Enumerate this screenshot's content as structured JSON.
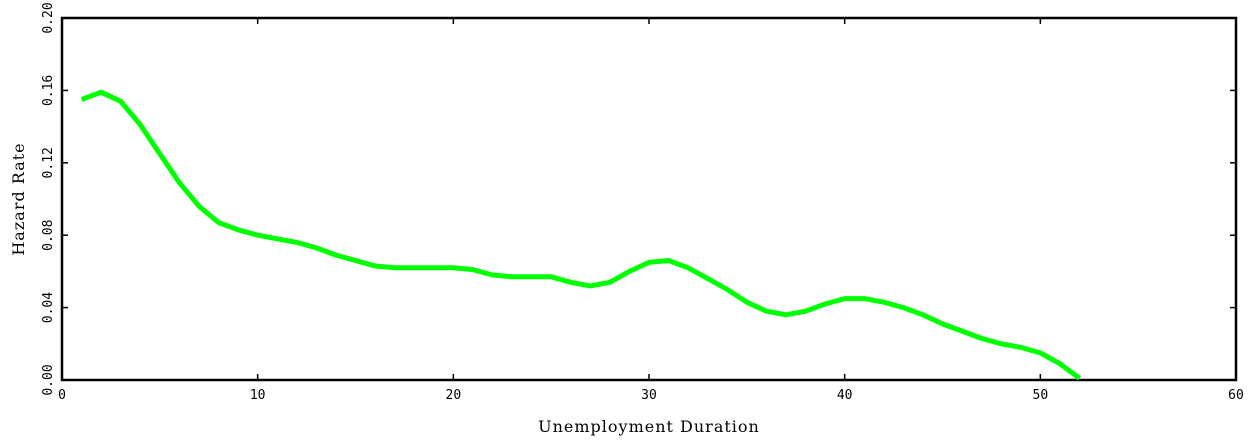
{
  "chart_data": {
    "type": "line",
    "title": "",
    "xlabel": "Unemployment Duration",
    "ylabel": "Hazard Rate",
    "xlim": [
      0,
      60
    ],
    "ylim": [
      0,
      0.2
    ],
    "x_ticks": [
      0,
      10,
      20,
      30,
      40,
      50,
      60
    ],
    "x_tick_labels": [
      "0",
      "10",
      "20",
      "30",
      "40",
      "50",
      "60"
    ],
    "y_ticks": [
      0,
      0.04,
      0.08,
      0.12,
      0.16,
      0.2
    ],
    "y_tick_labels": [
      "0.00",
      "0.04",
      "0.08",
      "0.12",
      "0.16",
      "0.20"
    ],
    "grid": false,
    "legend": "none",
    "series": [
      {
        "color": "#00ff00",
        "x": [
          1,
          2,
          3,
          4,
          5,
          6,
          7,
          8,
          9,
          10,
          11,
          12,
          13,
          14,
          15,
          16,
          17,
          18,
          19,
          20,
          21,
          22,
          23,
          24,
          25,
          26,
          27,
          28,
          29,
          30,
          31,
          32,
          33,
          34,
          35,
          36,
          37,
          38,
          39,
          40,
          41,
          42,
          43,
          44,
          45,
          46,
          47,
          48,
          49,
          50,
          51,
          52
        ],
        "y": [
          0.155,
          0.159,
          0.154,
          0.141,
          0.125,
          0.109,
          0.096,
          0.087,
          0.083,
          0.08,
          0.078,
          0.076,
          0.073,
          0.069,
          0.066,
          0.063,
          0.062,
          0.062,
          0.062,
          0.062,
          0.061,
          0.058,
          0.057,
          0.057,
          0.057,
          0.054,
          0.052,
          0.054,
          0.06,
          0.065,
          0.066,
          0.062,
          0.056,
          0.05,
          0.043,
          0.038,
          0.036,
          0.038,
          0.042,
          0.045,
          0.045,
          0.043,
          0.04,
          0.036,
          0.031,
          0.027,
          0.023,
          0.02,
          0.018,
          0.015,
          0.009,
          0.001
        ]
      }
    ]
  }
}
